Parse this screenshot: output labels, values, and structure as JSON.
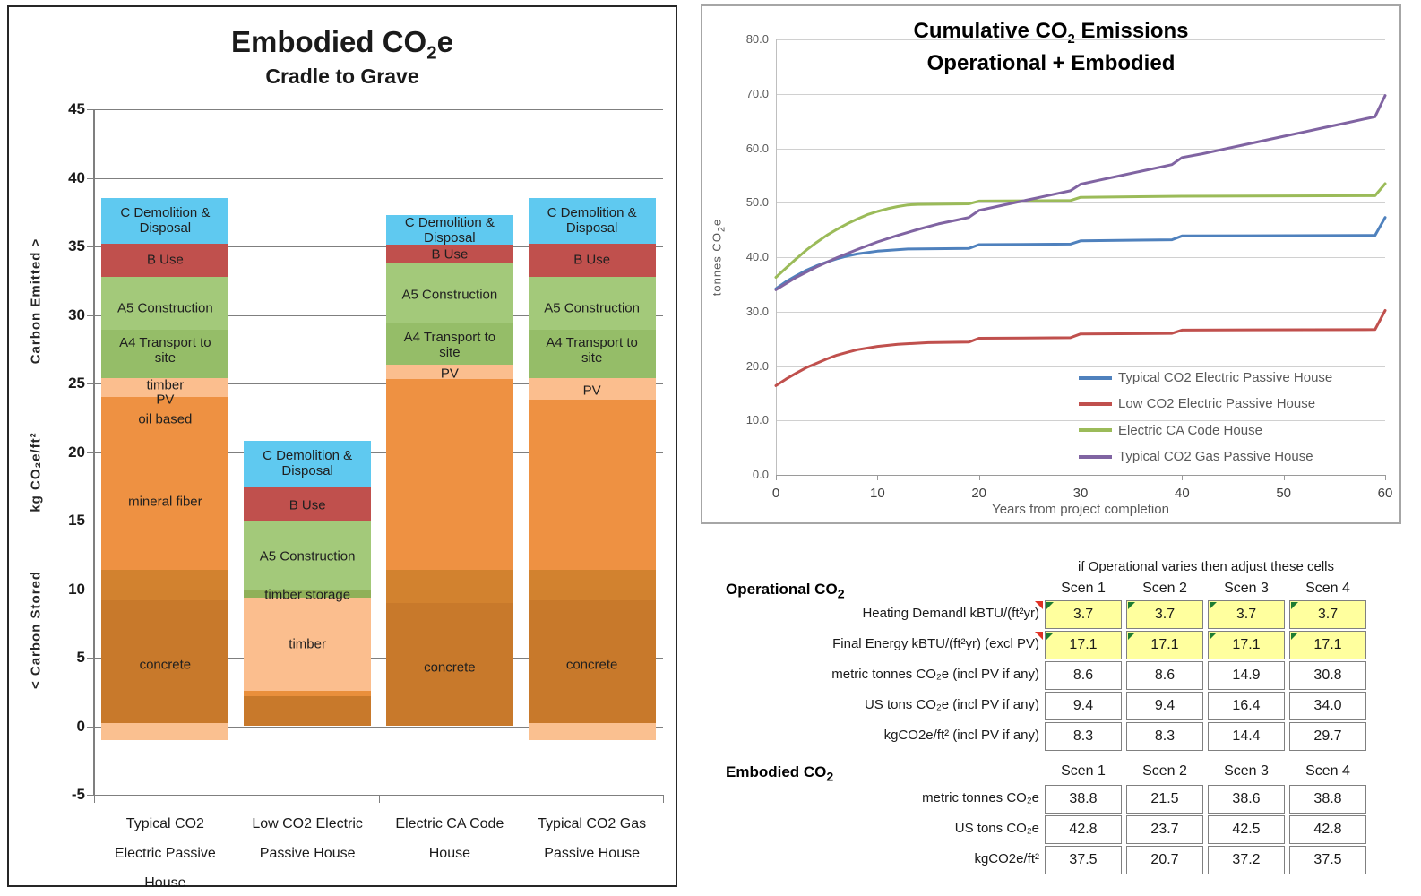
{
  "chart_data": [
    {
      "id": "embodied-bar-chart",
      "type": "bar",
      "stacked": true,
      "title": {
        "pre": "Embodied CO",
        "sub": "2",
        "post": "e"
      },
      "subtitle": "Cradle to Grave",
      "ylim": [
        -5,
        45
      ],
      "grid": true,
      "y_axis": {
        "ticks": [
          45,
          40,
          35,
          30,
          25,
          20,
          15,
          10,
          5,
          0,
          -5
        ],
        "labels": [
          {
            "text": "Carbon Emitted >",
            "center_value": 31
          },
          {
            "text": "kg CO₂e/ft²",
            "center_value": 18.5
          },
          {
            "text": "< Carbon Stored",
            "center_value": 7
          }
        ]
      },
      "categories": [
        "Typical CO2\nElectric Passive\nHouse",
        "Low CO2 Electric\nPassive House",
        "Electric CA Code\nHouse",
        "Typical CO2 Gas\nPassive House"
      ],
      "bars": [
        {
          "segments": [
            {
              "from": -1.0,
              "to": 0.2,
              "color": "#FAC090"
            },
            {
              "from": 0.2,
              "to": 9.2,
              "color": "#C8792B"
            },
            {
              "from": 9.2,
              "to": 11.4,
              "color": "#D2822F"
            },
            {
              "from": 11.4,
              "to": 24.0,
              "color": "#EE9142"
            },
            {
              "from": 24.0,
              "to": 25.4,
              "color": "#FBBE8E"
            },
            {
              "from": 25.4,
              "to": 28.9,
              "color": "#95BD68"
            },
            {
              "from": 28.9,
              "to": 32.8,
              "color": "#A3C97A"
            },
            {
              "from": 32.8,
              "to": 35.2,
              "color": "#C0504D"
            },
            {
              "from": 35.2,
              "to": 38.5,
              "color": "#5FC9F0"
            }
          ],
          "labels": [
            {
              "text": "C Demolition &\nDisposal",
              "y": 36.9
            },
            {
              "text": "B Use",
              "y": 34.0
            },
            {
              "text": "A5 Construction",
              "y": 30.5
            },
            {
              "text": "A4 Transport to\nsite",
              "y": 27.4
            },
            {
              "text": "timber",
              "y": 24.9
            },
            {
              "text": "PV",
              "y": 23.8
            },
            {
              "text": "oil based",
              "y": 22.4
            },
            {
              "text": "mineral fiber",
              "y": 16.4
            },
            {
              "text": "concrete",
              "y": 4.5
            }
          ]
        },
        {
          "segments": [
            {
              "from": 0.0,
              "to": 2.2,
              "color": "#C8792B"
            },
            {
              "from": 2.2,
              "to": 2.6,
              "color": "#E98F3C"
            },
            {
              "from": 2.6,
              "to": 9.4,
              "color": "#FBBE8E"
            },
            {
              "from": 9.4,
              "to": 9.9,
              "color": "#90B058"
            },
            {
              "from": 9.9,
              "to": 15.0,
              "color": "#A3C97A"
            },
            {
              "from": 15.0,
              "to": 17.4,
              "color": "#C0504D"
            },
            {
              "from": 17.4,
              "to": 20.8,
              "color": "#5FC9F0"
            }
          ],
          "labels": [
            {
              "text": "C Demolition &\nDisposal",
              "y": 19.2
            },
            {
              "text": "B Use",
              "y": 16.1
            },
            {
              "text": "A5 Construction",
              "y": 12.4
            },
            {
              "text": "timber storage",
              "y": 9.6
            },
            {
              "text": "timber",
              "y": 6.0
            }
          ]
        },
        {
          "segments": [
            {
              "from": 0.0,
              "to": 9.0,
              "color": "#C8792B"
            },
            {
              "from": 9.0,
              "to": 11.4,
              "color": "#D2822F"
            },
            {
              "from": 11.4,
              "to": 25.3,
              "color": "#EE9142"
            },
            {
              "from": 25.3,
              "to": 26.4,
              "color": "#FBBE8E"
            },
            {
              "from": 26.4,
              "to": 29.4,
              "color": "#95BD68"
            },
            {
              "from": 29.4,
              "to": 33.8,
              "color": "#A3C97A"
            },
            {
              "from": 33.8,
              "to": 35.1,
              "color": "#C0504D"
            },
            {
              "from": 35.1,
              "to": 37.3,
              "color": "#5FC9F0"
            }
          ],
          "labels": [
            {
              "text": "C Demolition &\nDisposal",
              "y": 36.2
            },
            {
              "text": "B Use",
              "y": 34.4
            },
            {
              "text": "A5 Construction",
              "y": 31.5
            },
            {
              "text": "A4 Transport to\nsite",
              "y": 27.8
            },
            {
              "text": "PV",
              "y": 25.7
            },
            {
              "text": "concrete",
              "y": 4.3
            }
          ]
        },
        {
          "segments": [
            {
              "from": -1.0,
              "to": 0.2,
              "color": "#FAC090"
            },
            {
              "from": 0.2,
              "to": 9.2,
              "color": "#C8792B"
            },
            {
              "from": 9.2,
              "to": 11.4,
              "color": "#D2822F"
            },
            {
              "from": 11.4,
              "to": 23.8,
              "color": "#EE9142"
            },
            {
              "from": 23.8,
              "to": 25.4,
              "color": "#FBBE8E"
            },
            {
              "from": 25.4,
              "to": 28.9,
              "color": "#95BD68"
            },
            {
              "from": 28.9,
              "to": 32.8,
              "color": "#A3C97A"
            },
            {
              "from": 32.8,
              "to": 35.2,
              "color": "#C0504D"
            },
            {
              "from": 35.2,
              "to": 38.5,
              "color": "#5FC9F0"
            }
          ],
          "labels": [
            {
              "text": "C Demolition &\nDisposal",
              "y": 36.9
            },
            {
              "text": "B Use",
              "y": 34.0
            },
            {
              "text": "A5 Construction",
              "y": 30.5
            },
            {
              "text": "A4 Transport to\nsite",
              "y": 27.4
            },
            {
              "text": "PV",
              "y": 24.5
            },
            {
              "text": "concrete",
              "y": 4.5
            }
          ]
        }
      ]
    },
    {
      "id": "cumulative-line-chart",
      "type": "line",
      "title": {
        "pre": "Cumulative CO",
        "sub": "2",
        "post": " Emissions"
      },
      "subtitle": "Operational + Embodied",
      "xlabel": "Years from project completion",
      "ylabel": {
        "pre": "tonnes  CO",
        "sub": "2",
        "post": "e"
      },
      "xlim": [
        0,
        60
      ],
      "ylim": [
        0,
        80
      ],
      "grid": true,
      "legend_position": "inside-right",
      "xticks": [
        0,
        10,
        20,
        30,
        40,
        50,
        60
      ],
      "yticks": [
        80,
        70,
        60,
        50,
        40,
        30,
        20,
        10,
        0
      ],
      "series": [
        {
          "name": "Typical CO2 Electric Passive House",
          "color": "#4F81BD",
          "points": [
            [
              0,
              34.2
            ],
            [
              1,
              35.5
            ],
            [
              2,
              36.6
            ],
            [
              3,
              37.6
            ],
            [
              4,
              38.4
            ],
            [
              5,
              39.1
            ],
            [
              6,
              39.7
            ],
            [
              7,
              40.2
            ],
            [
              8,
              40.6
            ],
            [
              10,
              41.1
            ],
            [
              13,
              41.5
            ],
            [
              19,
              41.6
            ],
            [
              20,
              42.3
            ],
            [
              29,
              42.4
            ],
            [
              30,
              43.0
            ],
            [
              39,
              43.2
            ],
            [
              40,
              43.9
            ],
            [
              59,
              44.0
            ],
            [
              60,
              47.3
            ]
          ]
        },
        {
          "name": "Low CO2 Electric Passive House",
          "color": "#C0504D",
          "points": [
            [
              0,
              16.4
            ],
            [
              1,
              17.6
            ],
            [
              2,
              18.7
            ],
            [
              3,
              19.7
            ],
            [
              4,
              20.5
            ],
            [
              5,
              21.3
            ],
            [
              6,
              22.0
            ],
            [
              7,
              22.5
            ],
            [
              8,
              23.0
            ],
            [
              10,
              23.6
            ],
            [
              12,
              24.0
            ],
            [
              15,
              24.3
            ],
            [
              19,
              24.4
            ],
            [
              20,
              25.1
            ],
            [
              29,
              25.2
            ],
            [
              30,
              25.9
            ],
            [
              39,
              26.0
            ],
            [
              40,
              26.6
            ],
            [
              59,
              26.7
            ],
            [
              60,
              30.2
            ]
          ]
        },
        {
          "name": "Electric CA Code House",
          "color": "#9BBB59",
          "points": [
            [
              0,
              36.3
            ],
            [
              1,
              38.0
            ],
            [
              2,
              39.7
            ],
            [
              3,
              41.3
            ],
            [
              4,
              42.7
            ],
            [
              5,
              44.0
            ],
            [
              6,
              45.1
            ],
            [
              7,
              46.1
            ],
            [
              8,
              47.0
            ],
            [
              9,
              47.8
            ],
            [
              10,
              48.4
            ],
            [
              11,
              48.9
            ],
            [
              12,
              49.3
            ],
            [
              13,
              49.6
            ],
            [
              14,
              49.7
            ],
            [
              19,
              49.8
            ],
            [
              20,
              50.3
            ],
            [
              29,
              50.4
            ],
            [
              30,
              51.0
            ],
            [
              40,
              51.2
            ],
            [
              59,
              51.3
            ],
            [
              60,
              53.5
            ]
          ]
        },
        {
          "name": "Typical CO2 Gas Passive House",
          "color": "#8064A2",
          "points": [
            [
              0,
              34.0
            ],
            [
              2,
              36.3
            ],
            [
              4,
              38.2
            ],
            [
              6,
              39.9
            ],
            [
              8,
              41.4
            ],
            [
              10,
              42.8
            ],
            [
              12,
              44.0
            ],
            [
              14,
              45.1
            ],
            [
              16,
              46.1
            ],
            [
              18,
              46.9
            ],
            [
              19,
              47.3
            ],
            [
              20,
              48.6
            ],
            [
              22,
              49.4
            ],
            [
              24,
              50.2
            ],
            [
              26,
              51.0
            ],
            [
              28,
              51.8
            ],
            [
              29,
              52.2
            ],
            [
              30,
              53.4
            ],
            [
              32,
              54.2
            ],
            [
              34,
              55.0
            ],
            [
              36,
              55.8
            ],
            [
              38,
              56.6
            ],
            [
              39,
              57.0
            ],
            [
              40,
              58.3
            ],
            [
              42,
              59.0
            ],
            [
              44,
              59.8
            ],
            [
              46,
              60.6
            ],
            [
              48,
              61.4
            ],
            [
              50,
              62.2
            ],
            [
              52,
              63.0
            ],
            [
              54,
              63.8
            ],
            [
              56,
              64.6
            ],
            [
              58,
              65.4
            ],
            [
              59,
              65.8
            ],
            [
              60,
              69.7
            ]
          ]
        }
      ]
    }
  ],
  "tables": {
    "note": "if Operational varies then adjust these cells",
    "operational": {
      "title": {
        "pre": "Operational  CO",
        "sub": "2"
      },
      "columns": [
        "Scen 1",
        "Scen 2",
        "Scen 3",
        "Scen 4"
      ],
      "rows": [
        {
          "label": "Heating Demandl kBTU/(ft²yr)",
          "values": [
            "3.7",
            "3.7",
            "3.7",
            "3.7"
          ],
          "highlight": true,
          "label_flag": true
        },
        {
          "label": "Final Energy kBTU/(ft²yr) (excl PV)",
          "values": [
            "17.1",
            "17.1",
            "17.1",
            "17.1"
          ],
          "highlight": true,
          "label_flag": true
        },
        {
          "label": "metric tonnes CO₂e (incl PV if any)",
          "values": [
            "8.6",
            "8.6",
            "14.9",
            "30.8"
          ],
          "highlight": false,
          "label_flag": false
        },
        {
          "label": "US tons CO₂e (incl PV if any)",
          "values": [
            "9.4",
            "9.4",
            "16.4",
            "34.0"
          ],
          "highlight": false,
          "label_flag": false
        },
        {
          "label": "kgCO2e/ft² (incl PV if any)",
          "values": [
            "8.3",
            "8.3",
            "14.4",
            "29.7"
          ],
          "highlight": false,
          "label_flag": false
        }
      ]
    },
    "embodied": {
      "title": {
        "pre": "Embodied CO",
        "sub": "2"
      },
      "columns": [
        "Scen 1",
        "Scen 2",
        "Scen 3",
        "Scen 4"
      ],
      "rows": [
        {
          "label": "metric tonnes CO₂e",
          "values": [
            "38.8",
            "21.5",
            "38.6",
            "38.8"
          ],
          "highlight": false,
          "label_flag": false
        },
        {
          "label": "US tons CO₂e",
          "values": [
            "42.8",
            "23.7",
            "42.5",
            "42.8"
          ],
          "highlight": false,
          "label_flag": false
        },
        {
          "label": "kgCO2e/ft²",
          "values": [
            "37.5",
            "20.7",
            "37.2",
            "37.5"
          ],
          "highlight": false,
          "label_flag": false
        }
      ]
    }
  }
}
